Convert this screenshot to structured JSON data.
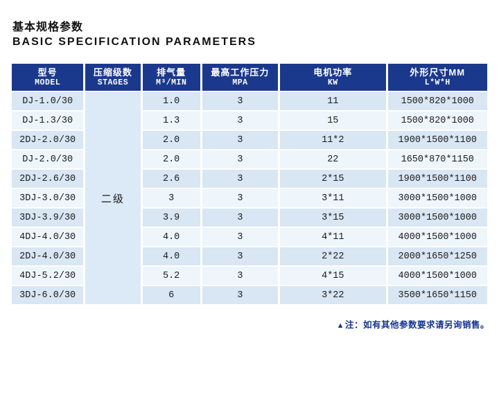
{
  "page": {
    "title_zh": "基本规格参数",
    "title_en": "BASIC SPECIFICATION PARAMETERS"
  },
  "colors": {
    "header-bg": "#1b398c",
    "stripe-dark": "#d9e6f3",
    "stripe-light": "#eef5fb",
    "stages-bg": "#dce9f6",
    "note-color": "#16338e"
  },
  "table": {
    "columns": [
      {
        "zh": "型号",
        "en": "MODEL"
      },
      {
        "zh": "压缩级数",
        "en": "STAGES"
      },
      {
        "zh": "排气量",
        "en": "M³/MIN"
      },
      {
        "zh": "最高工作压力",
        "en": "MPA"
      },
      {
        "zh": "电机功率",
        "en": "KW"
      },
      {
        "zh": "外形尺寸MM",
        "en": "L*W*H"
      }
    ],
    "stages_merged_value": "二级",
    "rows": [
      {
        "model": "DJ-1.0/30",
        "displacement": "1.0",
        "pressure": "3",
        "power": "11",
        "dimensions": "1500*820*1000"
      },
      {
        "model": "DJ-1.3/30",
        "displacement": "1.3",
        "pressure": "3",
        "power": "15",
        "dimensions": "1500*820*1000"
      },
      {
        "model": "2DJ-2.0/30",
        "displacement": "2.0",
        "pressure": "3",
        "power": "11*2",
        "dimensions": "1900*1500*1100"
      },
      {
        "model": "DJ-2.0/30",
        "displacement": "2.0",
        "pressure": "3",
        "power": "22",
        "dimensions": "1650*870*1150"
      },
      {
        "model": "2DJ-2.6/30",
        "displacement": "2.6",
        "pressure": "3",
        "power": "2*15",
        "dimensions": "1900*1500*1100"
      },
      {
        "model": "3DJ-3.0/30",
        "displacement": "3",
        "pressure": "3",
        "power": "3*11",
        "dimensions": "3000*1500*1000"
      },
      {
        "model": "3DJ-3.9/30",
        "displacement": "3.9",
        "pressure": "3",
        "power": "3*15",
        "dimensions": "3000*1500*1000"
      },
      {
        "model": "4DJ-4.0/30",
        "displacement": "4.0",
        "pressure": "3",
        "power": "4*11",
        "dimensions": "4000*1500*1000"
      },
      {
        "model": "2DJ-4.0/30",
        "displacement": "4.0",
        "pressure": "3",
        "power": "2*22",
        "dimensions": "2000*1650*1250"
      },
      {
        "model": "4DJ-5.2/30",
        "displacement": "5.2",
        "pressure": "3",
        "power": "4*15",
        "dimensions": "4000*1500*1000"
      },
      {
        "model": "3DJ-6.0/30",
        "displacement": "6",
        "pressure": "3",
        "power": "3*22",
        "dimensions": "3500*1650*1150"
      }
    ]
  },
  "note": {
    "marker": "▲",
    "text": "注：如有其他参数要求请另询销售。"
  }
}
